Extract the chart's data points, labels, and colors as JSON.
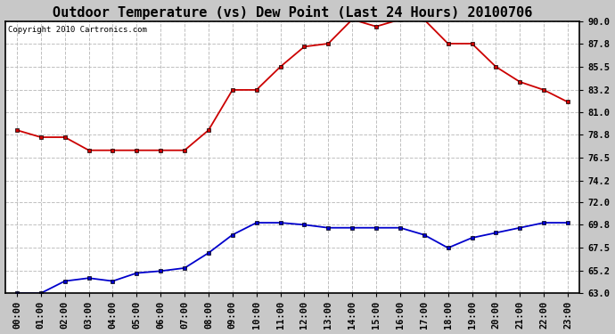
{
  "title": "Outdoor Temperature (vs) Dew Point (Last 24 Hours) 20100706",
  "copyright": "Copyright 2010 Cartronics.com",
  "x_labels": [
    "00:00",
    "01:00",
    "02:00",
    "03:00",
    "04:00",
    "05:00",
    "06:00",
    "07:00",
    "08:00",
    "09:00",
    "10:00",
    "11:00",
    "12:00",
    "13:00",
    "14:00",
    "15:00",
    "16:00",
    "17:00",
    "18:00",
    "19:00",
    "20:00",
    "21:00",
    "22:00",
    "23:00"
  ],
  "temp_red": [
    79.2,
    78.5,
    78.5,
    77.2,
    77.2,
    77.2,
    77.2,
    77.2,
    79.2,
    83.2,
    83.2,
    85.5,
    87.5,
    87.8,
    90.2,
    89.5,
    90.2,
    90.2,
    87.8,
    87.8,
    85.5,
    84.0,
    83.2,
    82.0
  ],
  "dew_blue": [
    63.0,
    63.0,
    64.2,
    64.5,
    64.2,
    65.0,
    65.2,
    65.5,
    67.0,
    68.8,
    70.0,
    70.0,
    69.8,
    69.5,
    69.5,
    69.5,
    69.5,
    68.8,
    67.5,
    68.5,
    69.0,
    69.5,
    70.0,
    70.0
  ],
  "ylim_min": 63.0,
  "ylim_max": 90.0,
  "yticks": [
    63.0,
    65.2,
    67.5,
    69.8,
    72.0,
    74.2,
    76.5,
    78.8,
    81.0,
    83.2,
    85.5,
    87.8,
    90.0
  ],
  "bg_color": "#c8c8c8",
  "plot_bg_color": "#ffffff",
  "grid_color": "#c0c0c0",
  "red_color": "#cc0000",
  "blue_color": "#0000cc",
  "title_fontsize": 11,
  "tick_fontsize": 7.5,
  "copyright_fontsize": 6.5
}
